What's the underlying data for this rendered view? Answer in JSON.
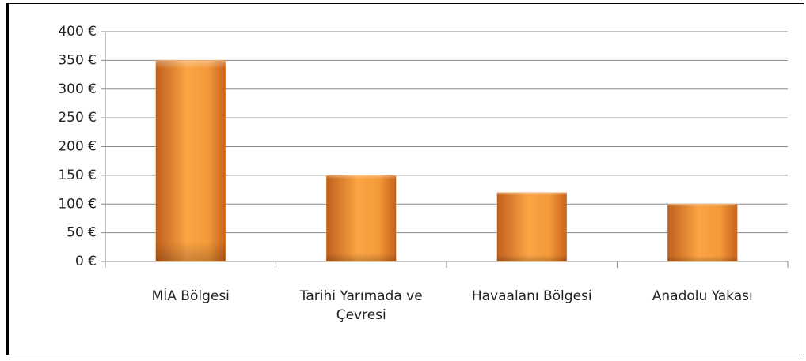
{
  "chart_data": {
    "type": "bar",
    "categories": [
      "MİA Bölgesi",
      "Tarihi Yarımada ve Çevresi",
      "Havaalanı Bölgesi",
      "Anadolu Yakası"
    ],
    "values": [
      350,
      150,
      120,
      100
    ],
    "color": "#f39a3a",
    "ylim": [
      0,
      400
    ],
    "yticks": [
      {
        "value": 0,
        "label": "0 €"
      },
      {
        "value": 50,
        "label": "50 €"
      },
      {
        "value": 100,
        "label": "100 €"
      },
      {
        "value": 150,
        "label": "150 €"
      },
      {
        "value": 200,
        "label": "200 €"
      },
      {
        "value": 250,
        "label": "250 €"
      },
      {
        "value": 300,
        "label": "300 €"
      },
      {
        "value": 350,
        "label": "350 €"
      },
      {
        "value": 400,
        "label": "400 €"
      }
    ],
    "grid": true
  }
}
